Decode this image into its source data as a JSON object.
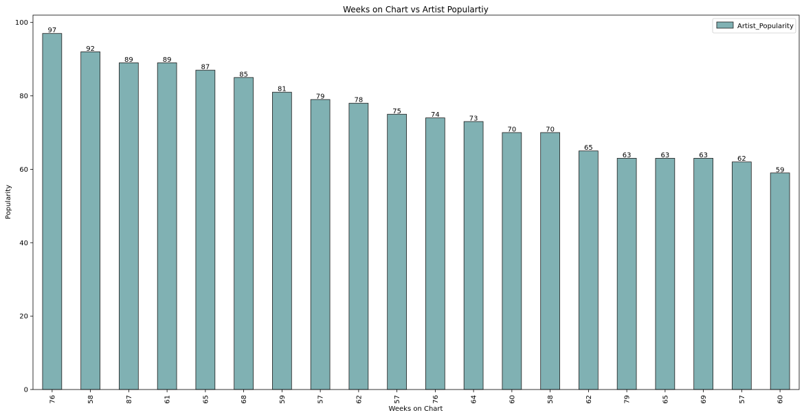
{
  "chart_data": {
    "type": "bar",
    "title": "Weeks on Chart vs Artist Populartiy",
    "xlabel": "Weeks on Chart",
    "ylabel": "Popularity",
    "categories": [
      "76",
      "58",
      "87",
      "61",
      "65",
      "68",
      "59",
      "57",
      "62",
      "57",
      "76",
      "64",
      "60",
      "58",
      "62",
      "79",
      "65",
      "69",
      "57",
      "60"
    ],
    "series": [
      {
        "name": "Artist_Popularity",
        "values": [
          97,
          92,
          89,
          89,
          87,
          85,
          81,
          79,
          78,
          75,
          74,
          73,
          70,
          70,
          65,
          63,
          63,
          63,
          62,
          59
        ]
      }
    ],
    "ylim": [
      0,
      102
    ],
    "yticks": [
      0,
      20,
      40,
      60,
      80,
      100
    ],
    "grid": false,
    "legend": "top-right",
    "data_labels": true,
    "colors": {
      "bar_fill": "#80b1b3",
      "bar_edge": "#1a1a1a"
    }
  }
}
